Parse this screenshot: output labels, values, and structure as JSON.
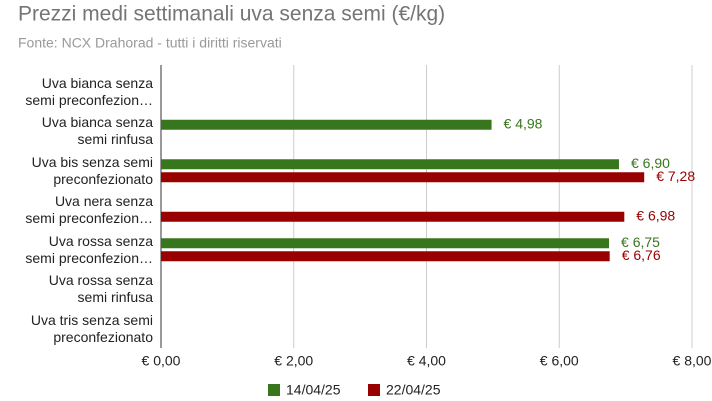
{
  "chart_data": {
    "type": "hbar",
    "title": "Prezzi medi settimanali uva senza semi (€/kg)",
    "subtitle": "Fonte: NCX Drahorad - tutti i diritti riservati",
    "categories": [
      "Uva bianca senza semi preconfezion…",
      "Uva bianca senza semi rinfusa",
      "Uva bis senza semi preconfezionato",
      "Uva nera senza semi preconfezion…",
      "Uva rossa senza semi preconfezion…",
      "Uva rossa senza semi rinfusa",
      "Uva tris senza semi preconfezionato"
    ],
    "series": [
      {
        "name": "14/04/25",
        "color": "#38761d",
        "values": [
          null,
          4.98,
          6.9,
          null,
          6.75,
          null,
          null
        ],
        "value_labels": [
          null,
          "€ 4,98",
          "€ 6,90",
          null,
          "€ 6,75",
          null,
          null
        ]
      },
      {
        "name": "22/04/25",
        "color": "#990000",
        "values": [
          null,
          null,
          7.28,
          6.98,
          6.76,
          null,
          null
        ],
        "value_labels": [
          null,
          null,
          "€ 7,28",
          "€ 6,98",
          "€ 6,76",
          null,
          null
        ]
      }
    ],
    "xlim": [
      0,
      8
    ],
    "xticks": [
      {
        "value": 0,
        "label": "€ 0,00"
      },
      {
        "value": 2,
        "label": "€ 2,00"
      },
      {
        "value": 4,
        "label": "€ 4,00"
      },
      {
        "value": 6,
        "label": "€ 6,00"
      },
      {
        "value": 8,
        "label": "€ 8,00"
      }
    ],
    "grid": true,
    "legend": "bottom"
  }
}
